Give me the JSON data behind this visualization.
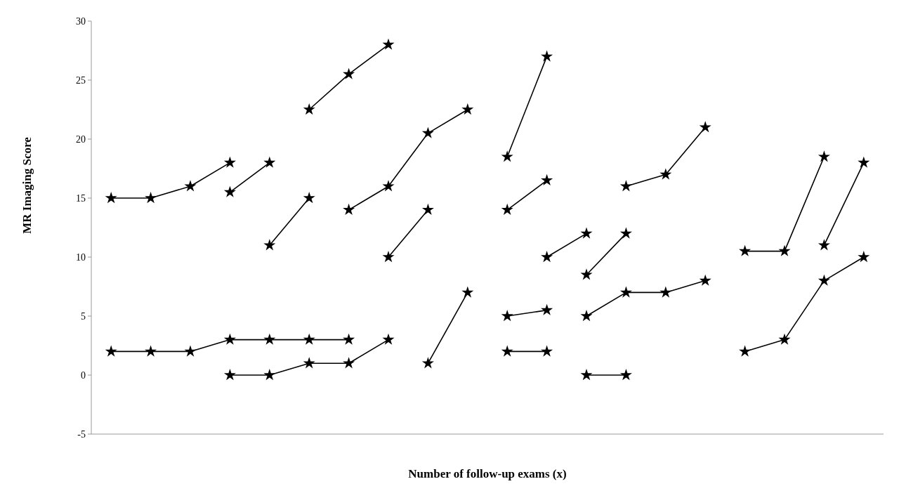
{
  "chart_data": {
    "type": "line",
    "xlabel": "Number of follow-up exams (x)",
    "ylabel": "MR Imaging Score",
    "categories": [
      null,
      null,
      null,
      null,
      null,
      null,
      null,
      null,
      null,
      null,
      null,
      null,
      null,
      null,
      null,
      null,
      null,
      null,
      null,
      null
    ],
    "ylim": [
      -5,
      30
    ],
    "yticks": [
      -5,
      0,
      5,
      10,
      15,
      20,
      25,
      30
    ],
    "tick_labels": "y",
    "grid": false,
    "marker": "star",
    "line_style": "solid",
    "series": [
      {
        "color": "#000000",
        "values": [
          15,
          15,
          16,
          18,
          null,
          null,
          null,
          null,
          null,
          null,
          null,
          null,
          null,
          null,
          null,
          null,
          null,
          null,
          null,
          null
        ]
      },
      {
        "color": "#000000",
        "values": [
          null,
          null,
          null,
          15.5,
          18,
          null,
          null,
          null,
          null,
          null,
          null,
          null,
          null,
          null,
          null,
          null,
          null,
          null,
          null,
          null
        ]
      },
      {
        "color": "#000000",
        "values": [
          null,
          null,
          null,
          null,
          11,
          15,
          null,
          null,
          null,
          null,
          null,
          null,
          null,
          null,
          null,
          null,
          null,
          null,
          null,
          null
        ]
      },
      {
        "color": "#000000",
        "values": [
          null,
          null,
          null,
          null,
          null,
          22.5,
          25.5,
          28,
          null,
          null,
          null,
          null,
          null,
          null,
          null,
          null,
          null,
          null,
          null,
          null
        ]
      },
      {
        "color": "#000000",
        "values": [
          null,
          null,
          null,
          null,
          null,
          null,
          14,
          16,
          20.5,
          22.5,
          null,
          null,
          null,
          null,
          null,
          null,
          null,
          null,
          null,
          null
        ]
      },
      {
        "color": "#000000",
        "values": [
          null,
          null,
          null,
          null,
          null,
          null,
          null,
          10,
          14,
          null,
          null,
          null,
          null,
          null,
          null,
          null,
          null,
          null,
          null,
          null
        ]
      },
      {
        "color": "#000000",
        "values": [
          2,
          2,
          2,
          3,
          3,
          3,
          3,
          null,
          null,
          null,
          null,
          null,
          null,
          null,
          null,
          null,
          null,
          null,
          null,
          null
        ]
      },
      {
        "color": "#000000",
        "values": [
          null,
          null,
          null,
          0,
          0,
          1,
          1,
          3,
          null,
          null,
          null,
          null,
          null,
          null,
          null,
          null,
          null,
          null,
          null,
          null
        ]
      },
      {
        "color": "#000000",
        "values": [
          null,
          null,
          null,
          null,
          null,
          null,
          null,
          null,
          1,
          7,
          null,
          null,
          null,
          null,
          null,
          null,
          null,
          null,
          null,
          null
        ]
      },
      {
        "color": "#000000",
        "values": [
          null,
          null,
          null,
          null,
          null,
          null,
          null,
          null,
          null,
          null,
          18.5,
          27,
          null,
          null,
          null,
          null,
          null,
          null,
          null,
          null
        ]
      },
      {
        "color": "#000000",
        "values": [
          null,
          null,
          null,
          null,
          null,
          null,
          null,
          null,
          null,
          null,
          14,
          16.5,
          null,
          null,
          null,
          null,
          null,
          null,
          null,
          null
        ]
      },
      {
        "color": "#000000",
        "values": [
          null,
          null,
          null,
          null,
          null,
          null,
          null,
          null,
          null,
          null,
          null,
          10,
          12,
          null,
          null,
          null,
          null,
          null,
          null,
          null
        ]
      },
      {
        "color": "#000000",
        "values": [
          null,
          null,
          null,
          null,
          null,
          null,
          null,
          null,
          null,
          null,
          null,
          null,
          8.5,
          12,
          null,
          null,
          null,
          null,
          null,
          null
        ]
      },
      {
        "color": "#000000",
        "values": [
          null,
          null,
          null,
          null,
          null,
          null,
          null,
          null,
          null,
          null,
          null,
          null,
          null,
          16,
          17,
          21,
          null,
          null,
          null,
          null
        ]
      },
      {
        "color": "#000000",
        "values": [
          null,
          null,
          null,
          null,
          null,
          null,
          null,
          null,
          null,
          null,
          5,
          5.5,
          null,
          null,
          null,
          null,
          null,
          null,
          null,
          null
        ]
      },
      {
        "color": "#000000",
        "values": [
          null,
          null,
          null,
          null,
          null,
          null,
          null,
          null,
          null,
          null,
          null,
          null,
          5,
          7,
          7,
          8,
          null,
          null,
          null,
          null
        ]
      },
      {
        "color": "#000000",
        "values": [
          null,
          null,
          null,
          null,
          null,
          null,
          null,
          null,
          null,
          null,
          2,
          2,
          null,
          null,
          null,
          null,
          null,
          null,
          null,
          null
        ]
      },
      {
        "color": "#000000",
        "values": [
          null,
          null,
          null,
          null,
          null,
          null,
          null,
          null,
          null,
          null,
          null,
          null,
          0,
          0,
          null,
          null,
          null,
          null,
          null,
          null
        ]
      },
      {
        "color": "#000000",
        "values": [
          null,
          null,
          null,
          null,
          null,
          null,
          null,
          null,
          null,
          null,
          null,
          null,
          null,
          null,
          null,
          null,
          10.5,
          10.5,
          18.5,
          null
        ]
      },
      {
        "color": "#000000",
        "values": [
          null,
          null,
          null,
          null,
          null,
          null,
          null,
          null,
          null,
          null,
          null,
          null,
          null,
          null,
          null,
          null,
          null,
          null,
          11,
          18
        ]
      },
      {
        "color": "#000000",
        "values": [
          null,
          null,
          null,
          null,
          null,
          null,
          null,
          null,
          null,
          null,
          null,
          null,
          null,
          null,
          null,
          null,
          2,
          3,
          8,
          10
        ]
      }
    ]
  }
}
